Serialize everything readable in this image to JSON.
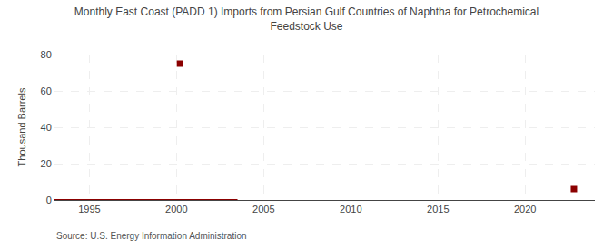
{
  "chart_data": {
    "type": "line",
    "title": "Monthly East Coast (PADD 1) Imports from Persian Gulf Countries of Naphtha for Petrochemical\nFeedstock Use",
    "ylabel": "Thousand Barrels",
    "source": "Source: U.S. Energy Information Administration",
    "xlim": [
      1993.0,
      2024.0
    ],
    "ylim": [
      0,
      80
    ],
    "xticks": [
      1995,
      2000,
      2005,
      2010,
      2015,
      2020
    ],
    "yticks": [
      0,
      20,
      40,
      60,
      80
    ],
    "grid": true,
    "series": [
      {
        "type": "line",
        "color": "#8B0000",
        "line_style": "solid",
        "x": [
          1993,
          1994,
          1995,
          1996,
          1997,
          1998,
          1999,
          2000,
          2000.5,
          2001,
          2001.5,
          2002,
          2002.5,
          2003,
          2003.5
        ],
        "values": [
          0,
          0,
          0,
          0,
          0,
          0,
          0,
          0,
          0,
          0,
          0,
          0,
          0,
          0,
          0
        ]
      },
      {
        "type": "scatter",
        "color": "#8B0000",
        "marker": "square",
        "x": [
          2000.2
        ],
        "values": [
          75
        ]
      },
      {
        "type": "scatter",
        "color": "#8B0000",
        "marker": "square",
        "x": [
          2022.8
        ],
        "values": [
          6
        ]
      }
    ]
  }
}
